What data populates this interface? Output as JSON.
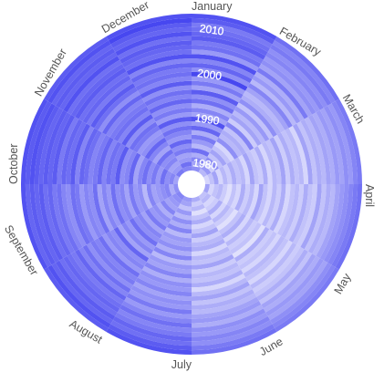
{
  "chart_data": {
    "type": "heatmap",
    "layout": "radial",
    "months": [
      "January",
      "February",
      "March",
      "April",
      "May",
      "June",
      "July",
      "August",
      "September",
      "October",
      "November",
      "December"
    ],
    "year_labels": [
      "1980",
      "1990",
      "2000",
      "2010"
    ],
    "year_start": 1979,
    "year_end": 2013,
    "color_low": "#ffffff",
    "color_high": "#3333ee",
    "value_range": [
      0,
      1
    ],
    "rows": [
      {
        "year": 1979,
        "values": [
          0.55,
          0.35,
          0.2,
          0.45,
          0.3,
          0.4,
          0.5,
          0.6,
          0.55,
          0.45,
          0.65,
          0.6
        ]
      },
      {
        "year": 1980,
        "values": [
          0.45,
          0.5,
          0.3,
          0.2,
          0.35,
          0.25,
          0.45,
          0.55,
          0.4,
          0.6,
          0.5,
          0.7
        ]
      },
      {
        "year": 1981,
        "values": [
          0.6,
          0.25,
          0.45,
          0.3,
          0.2,
          0.35,
          0.3,
          0.5,
          0.6,
          0.55,
          0.45,
          0.5
        ]
      },
      {
        "year": 1982,
        "values": [
          0.4,
          0.55,
          0.2,
          0.35,
          0.25,
          0.15,
          0.5,
          0.45,
          0.55,
          0.7,
          0.6,
          0.45
        ]
      },
      {
        "year": 1983,
        "values": [
          0.7,
          0.3,
          0.35,
          0.25,
          0.4,
          0.3,
          0.35,
          0.6,
          0.5,
          0.5,
          0.55,
          0.65
        ]
      },
      {
        "year": 1984,
        "values": [
          0.35,
          0.45,
          0.25,
          0.15,
          0.2,
          0.4,
          0.55,
          0.4,
          0.45,
          0.65,
          0.7,
          0.55
        ]
      },
      {
        "year": 1985,
        "values": [
          0.5,
          0.3,
          0.4,
          0.3,
          0.35,
          0.2,
          0.4,
          0.55,
          0.6,
          0.55,
          0.45,
          0.75
        ]
      },
      {
        "year": 1986,
        "values": [
          0.65,
          0.2,
          0.3,
          0.2,
          0.25,
          0.3,
          0.6,
          0.5,
          0.35,
          0.7,
          0.6,
          0.5
        ]
      },
      {
        "year": 1987,
        "values": [
          0.4,
          0.55,
          0.35,
          0.4,
          0.15,
          0.45,
          0.35,
          0.65,
          0.55,
          0.6,
          0.75,
          0.6
        ]
      },
      {
        "year": 1988,
        "values": [
          0.75,
          0.35,
          0.2,
          0.25,
          0.3,
          0.25,
          0.5,
          0.45,
          0.5,
          0.45,
          0.55,
          0.7
        ]
      },
      {
        "year": 1989,
        "values": [
          0.5,
          0.4,
          0.45,
          0.35,
          0.4,
          0.35,
          0.45,
          0.6,
          0.65,
          0.75,
          0.5,
          0.55
        ]
      },
      {
        "year": 1990,
        "values": [
          0.85,
          0.3,
          0.3,
          0.2,
          0.2,
          0.4,
          0.55,
          0.55,
          0.45,
          0.6,
          0.65,
          0.8
        ]
      },
      {
        "year": 1991,
        "values": [
          0.45,
          0.6,
          0.25,
          0.45,
          0.35,
          0.2,
          0.4,
          0.7,
          0.6,
          0.55,
          0.7,
          0.5
        ]
      },
      {
        "year": 1992,
        "values": [
          0.6,
          0.25,
          0.4,
          0.3,
          0.25,
          0.35,
          0.6,
          0.5,
          0.55,
          0.8,
          0.55,
          0.65
        ]
      },
      {
        "year": 1993,
        "values": [
          0.4,
          0.45,
          0.2,
          0.2,
          0.3,
          0.3,
          0.35,
          0.6,
          0.7,
          0.65,
          0.8,
          0.55
        ]
      },
      {
        "year": 1994,
        "values": [
          0.7,
          0.35,
          0.35,
          0.35,
          0.15,
          0.45,
          0.5,
          0.45,
          0.5,
          0.7,
          0.6,
          0.75
        ]
      },
      {
        "year": 1995,
        "values": [
          0.55,
          0.5,
          0.3,
          0.25,
          0.4,
          0.25,
          0.45,
          0.75,
          0.6,
          0.6,
          0.7,
          0.6
        ]
      },
      {
        "year": 1996,
        "values": [
          0.8,
          0.3,
          0.45,
          0.4,
          0.25,
          0.35,
          0.6,
          0.55,
          0.45,
          0.75,
          0.65,
          0.7
        ]
      },
      {
        "year": 1997,
        "values": [
          0.45,
          0.55,
          0.25,
          0.2,
          0.3,
          0.3,
          0.4,
          0.6,
          0.7,
          0.65,
          0.6,
          0.55
        ]
      },
      {
        "year": 1998,
        "values": [
          0.65,
          0.4,
          0.4,
          0.3,
          0.2,
          0.4,
          0.55,
          0.5,
          0.55,
          0.6,
          0.75,
          0.8
        ]
      },
      {
        "year": 1999,
        "values": [
          0.5,
          0.35,
          0.3,
          0.35,
          0.35,
          0.2,
          0.5,
          0.7,
          0.6,
          0.7,
          0.55,
          0.6
        ]
      },
      {
        "year": 2000,
        "values": [
          0.9,
          0.45,
          0.35,
          0.25,
          0.3,
          0.35,
          0.6,
          0.6,
          0.5,
          0.75,
          0.7,
          0.7
        ]
      },
      {
        "year": 2001,
        "values": [
          0.55,
          0.6,
          0.2,
          0.4,
          0.2,
          0.45,
          0.45,
          0.65,
          0.65,
          0.6,
          0.8,
          0.65
        ]
      },
      {
        "year": 2002,
        "values": [
          0.75,
          0.35,
          0.45,
          0.3,
          0.35,
          0.3,
          0.55,
          0.55,
          0.7,
          0.8,
          0.65,
          0.75
        ]
      },
      {
        "year": 2003,
        "values": [
          0.6,
          0.5,
          0.3,
          0.25,
          0.25,
          0.4,
          0.5,
          0.7,
          0.55,
          0.7,
          0.75,
          0.6
        ]
      },
      {
        "year": 2004,
        "values": [
          0.85,
          0.4,
          0.4,
          0.45,
          0.3,
          0.35,
          0.65,
          0.6,
          0.6,
          0.75,
          0.7,
          0.85
        ]
      },
      {
        "year": 2005,
        "values": [
          0.5,
          0.65,
          0.35,
          0.3,
          0.4,
          0.45,
          0.5,
          0.75,
          0.7,
          0.65,
          0.8,
          0.7
        ]
      },
      {
        "year": 2006,
        "values": [
          0.7,
          0.45,
          0.45,
          0.4,
          0.3,
          0.5,
          0.6,
          0.65,
          0.65,
          0.8,
          0.75,
          0.75
        ]
      },
      {
        "year": 2007,
        "values": [
          0.65,
          0.55,
          0.4,
          0.35,
          0.45,
          0.4,
          0.7,
          0.7,
          0.75,
          0.75,
          0.7,
          0.8
        ]
      },
      {
        "year": 2008,
        "values": [
          0.8,
          0.5,
          0.5,
          0.45,
          0.4,
          0.55,
          0.6,
          0.75,
          0.7,
          0.8,
          0.85,
          0.7
        ]
      },
      {
        "year": 2009,
        "values": [
          0.75,
          0.6,
          0.45,
          0.5,
          0.5,
          0.5,
          0.65,
          0.7,
          0.8,
          0.75,
          0.75,
          0.85
        ]
      },
      {
        "year": 2010,
        "values": [
          0.7,
          0.55,
          0.55,
          0.55,
          0.45,
          0.6,
          0.75,
          0.8,
          0.75,
          0.8,
          0.8,
          0.75
        ]
      },
      {
        "year": 2011,
        "values": [
          0.65,
          0.65,
          0.5,
          0.6,
          0.55,
          0.55,
          0.7,
          0.75,
          0.8,
          0.85,
          0.75,
          0.8
        ]
      },
      {
        "year": 2012,
        "values": [
          0.8,
          0.6,
          0.6,
          0.65,
          0.6,
          0.65,
          0.8,
          0.85,
          0.75,
          0.8,
          0.85,
          0.9
        ]
      },
      {
        "year": 2013,
        "values": [
          0.85,
          0.7,
          0.65,
          0.7,
          0.65,
          0.7,
          0.85,
          0.8,
          0.85,
          0.85,
          0.8,
          0.85
        ]
      }
    ]
  }
}
